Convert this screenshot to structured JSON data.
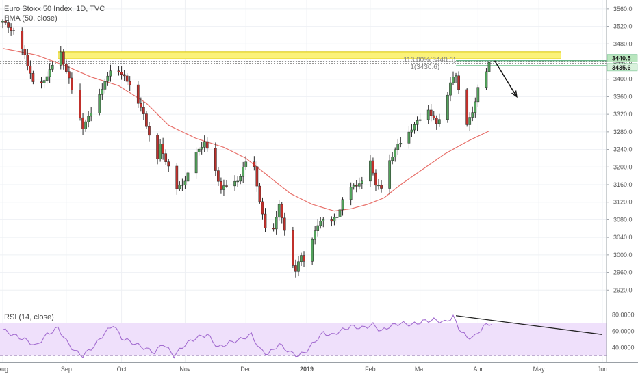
{
  "title": "Euro Stoxx 50 Index, 1D, TVC",
  "ema_label": "EMA (50, close)",
  "rsi_label": "RSI (14, close)",
  "colors": {
    "up": "#53a35c",
    "down": "#c0302b",
    "ema": "#e8706a",
    "rsi": "#a36cd0",
    "rsi_band": "#efe0fb",
    "zone": "#fbf27a",
    "zone_border": "#d9c500",
    "price_tag": "#c9ecc9"
  },
  "chart_data": [
    {
      "type": "candlestick",
      "title": "Euro Stoxx 50 Index, 1D, TVC",
      "ylim": [
        2880,
        3580
      ],
      "y_ticks": [
        3560,
        3520,
        3480,
        3440,
        3400,
        3360,
        3320,
        3280,
        3240,
        3200,
        3160,
        3120,
        3080,
        3040,
        3000,
        2960,
        2920
      ],
      "y_tick_labels": [
        "3560.0",
        "3520.0",
        "3480.0",
        "3440.0",
        "3400.0",
        "3360.0",
        "3320.0",
        "3280.0",
        "3240.0",
        "3200.0",
        "3160.0",
        "3120.0",
        "3080.0",
        "3040.0",
        "3000.0",
        "2960.0",
        "2920.0"
      ],
      "x_tick_labels": [
        "Aug",
        "Sep",
        "Oct",
        "Nov",
        "Dec",
        "2019",
        "Feb",
        "Mar",
        "Apr",
        "May",
        "Jun"
      ],
      "x_tick_days": [
        0,
        23,
        43,
        66,
        88,
        110,
        133,
        151,
        172,
        194,
        217
      ],
      "price_key_points": [
        {
          "day": 0,
          "price": 3530
        },
        {
          "day": 4,
          "price": 3508
        },
        {
          "day": 8,
          "price": 3452
        },
        {
          "day": 12,
          "price": 3370
        },
        {
          "day": 17,
          "price": 3418
        },
        {
          "day": 21,
          "price": 3460
        },
        {
          "day": 24,
          "price": 3400
        },
        {
          "day": 27,
          "price": 3330
        },
        {
          "day": 29,
          "price": 3290
        },
        {
          "day": 33,
          "price": 3340
        },
        {
          "day": 37,
          "price": 3390
        },
        {
          "day": 40,
          "price": 3440
        },
        {
          "day": 43,
          "price": 3410
        },
        {
          "day": 47,
          "price": 3380
        },
        {
          "day": 51,
          "price": 3320
        },
        {
          "day": 53,
          "price": 3270
        },
        {
          "day": 55,
          "price": 3190
        },
        {
          "day": 57,
          "price": 3250
        },
        {
          "day": 60,
          "price": 3200
        },
        {
          "day": 62,
          "price": 3140
        },
        {
          "day": 66,
          "price": 3170
        },
        {
          "day": 70,
          "price": 3230
        },
        {
          "day": 73,
          "price": 3255
        },
        {
          "day": 76,
          "price": 3210
        },
        {
          "day": 79,
          "price": 3150
        },
        {
          "day": 83,
          "price": 3160
        },
        {
          "day": 86,
          "price": 3180
        },
        {
          "day": 89,
          "price": 3230
        },
        {
          "day": 91,
          "price": 3200
        },
        {
          "day": 93,
          "price": 3120
        },
        {
          "day": 96,
          "price": 3040
        },
        {
          "day": 98,
          "price": 3060
        },
        {
          "day": 100,
          "price": 3110
        },
        {
          "day": 102,
          "price": 3060
        },
        {
          "day": 104,
          "price": 3000
        },
        {
          "day": 106,
          "price": 2960
        },
        {
          "day": 108,
          "price": 3000
        },
        {
          "day": 110,
          "price": 2970
        },
        {
          "day": 112,
          "price": 3040
        },
        {
          "day": 115,
          "price": 3080
        },
        {
          "day": 118,
          "price": 3070
        },
        {
          "day": 121,
          "price": 3090
        },
        {
          "day": 124,
          "price": 3140
        },
        {
          "day": 128,
          "price": 3160
        },
        {
          "day": 131,
          "price": 3170
        },
        {
          "day": 133,
          "price": 3210
        },
        {
          "day": 135,
          "price": 3160
        },
        {
          "day": 137,
          "price": 3150
        },
        {
          "day": 139,
          "price": 3200
        },
        {
          "day": 142,
          "price": 3240
        },
        {
          "day": 145,
          "price": 3260
        },
        {
          "day": 148,
          "price": 3290
        },
        {
          "day": 151,
          "price": 3310
        },
        {
          "day": 154,
          "price": 3330
        },
        {
          "day": 157,
          "price": 3300
        },
        {
          "day": 160,
          "price": 3340
        },
        {
          "day": 162,
          "price": 3390
        },
        {
          "day": 164,
          "price": 3410
        },
        {
          "day": 166,
          "price": 3350
        },
        {
          "day": 168,
          "price": 3300
        },
        {
          "day": 170,
          "price": 3320
        },
        {
          "day": 172,
          "price": 3380
        },
        {
          "day": 174,
          "price": 3405
        },
        {
          "day": 176,
          "price": 3436
        }
      ],
      "ema_key_points": [
        {
          "day": 0,
          "price": 3470
        },
        {
          "day": 12,
          "price": 3455
        },
        {
          "day": 22,
          "price": 3432
        },
        {
          "day": 32,
          "price": 3405
        },
        {
          "day": 42,
          "price": 3385
        },
        {
          "day": 52,
          "price": 3345
        },
        {
          "day": 60,
          "price": 3295
        },
        {
          "day": 70,
          "price": 3265
        },
        {
          "day": 80,
          "price": 3245
        },
        {
          "day": 88,
          "price": 3220
        },
        {
          "day": 96,
          "price": 3180
        },
        {
          "day": 104,
          "price": 3140
        },
        {
          "day": 112,
          "price": 3115
        },
        {
          "day": 120,
          "price": 3100
        },
        {
          "day": 126,
          "price": 3105
        },
        {
          "day": 132,
          "price": 3115
        },
        {
          "day": 138,
          "price": 3130
        },
        {
          "day": 144,
          "price": 3160
        },
        {
          "day": 152,
          "price": 3195
        },
        {
          "day": 160,
          "price": 3230
        },
        {
          "day": 168,
          "price": 3258
        },
        {
          "day": 176,
          "price": 3282
        }
      ],
      "resistance_zone": [
        3446,
        3462
      ],
      "resistance_zone_days": [
        20,
        202
      ],
      "fib_levels": [
        {
          "label": "113.00%(3440.6)",
          "price": 3442
        },
        {
          "label": "1(3430.6)",
          "price": 3431
        }
      ],
      "last_price_tags": [
        {
          "label": "3440.5",
          "price": 3440.5
        },
        {
          "label": "3435.6",
          "price": 3434
        }
      ],
      "forecast_arrow": {
        "from": {
          "day": 178,
          "price": 3442
        },
        "to": {
          "day": 186,
          "price": 3360
        }
      }
    },
    {
      "type": "line",
      "title": "RSI (14, close)",
      "ylim": [
        22,
        88
      ],
      "y_ticks": [
        80,
        60,
        40
      ],
      "y_tick_labels": [
        "80.0000",
        "60.0000",
        "40.0000"
      ],
      "band": [
        30,
        70
      ],
      "rsi_key_points": [
        {
          "day": 0,
          "price": 62
        },
        {
          "day": 4,
          "price": 55
        },
        {
          "day": 8,
          "price": 50
        },
        {
          "day": 12,
          "price": 42
        },
        {
          "day": 16,
          "price": 56
        },
        {
          "day": 20,
          "price": 64
        },
        {
          "day": 23,
          "price": 48
        },
        {
          "day": 26,
          "price": 36
        },
        {
          "day": 29,
          "price": 30
        },
        {
          "day": 33,
          "price": 42
        },
        {
          "day": 37,
          "price": 58
        },
        {
          "day": 40,
          "price": 68
        },
        {
          "day": 43,
          "price": 52
        },
        {
          "day": 47,
          "price": 46
        },
        {
          "day": 51,
          "price": 40
        },
        {
          "day": 55,
          "price": 34
        },
        {
          "day": 58,
          "price": 45
        },
        {
          "day": 62,
          "price": 30
        },
        {
          "day": 66,
          "price": 44
        },
        {
          "day": 70,
          "price": 52
        },
        {
          "day": 74,
          "price": 56
        },
        {
          "day": 78,
          "price": 40
        },
        {
          "day": 82,
          "price": 46
        },
        {
          "day": 86,
          "price": 50
        },
        {
          "day": 90,
          "price": 56
        },
        {
          "day": 93,
          "price": 38
        },
        {
          "day": 96,
          "price": 32
        },
        {
          "day": 100,
          "price": 44
        },
        {
          "day": 104,
          "price": 34
        },
        {
          "day": 107,
          "price": 30
        },
        {
          "day": 110,
          "price": 36
        },
        {
          "day": 113,
          "price": 48
        },
        {
          "day": 116,
          "price": 58
        },
        {
          "day": 119,
          "price": 55
        },
        {
          "day": 122,
          "price": 60
        },
        {
          "day": 126,
          "price": 66
        },
        {
          "day": 130,
          "price": 64
        },
        {
          "day": 134,
          "price": 68
        },
        {
          "day": 137,
          "price": 60
        },
        {
          "day": 140,
          "price": 66
        },
        {
          "day": 144,
          "price": 70
        },
        {
          "day": 148,
          "price": 68
        },
        {
          "day": 152,
          "price": 72
        },
        {
          "day": 156,
          "price": 74
        },
        {
          "day": 160,
          "price": 71
        },
        {
          "day": 163,
          "price": 78
        },
        {
          "day": 165,
          "price": 64
        },
        {
          "day": 168,
          "price": 52
        },
        {
          "day": 171,
          "price": 54
        },
        {
          "day": 174,
          "price": 66
        },
        {
          "day": 177,
          "price": 70
        }
      ],
      "divergence_line": {
        "from": {
          "day": 164,
          "price": 79
        },
        "to": {
          "day": 217,
          "price": 56
        }
      }
    }
  ]
}
